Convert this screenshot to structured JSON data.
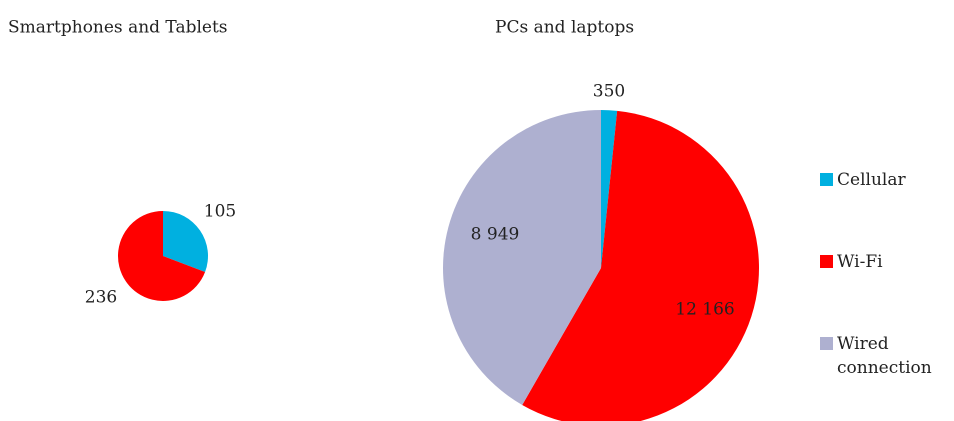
{
  "chart_data": [
    {
      "type": "pie",
      "title": "Smartphones and Tablets",
      "values": [
        105,
        236
      ],
      "colors": [
        "#00b0e0",
        "#ff0000"
      ]
    },
    {
      "type": "pie",
      "title": "PCs and laptops",
      "categories": [
        "Cellular",
        "Wi-Fi",
        "Wired connection"
      ],
      "values": [
        350,
        12166,
        8949
      ],
      "value_labels": [
        "350",
        "12 166",
        "8 949"
      ],
      "colors": [
        "#00b0e0",
        "#ff0000",
        "#aeb0d0"
      ]
    }
  ]
}
